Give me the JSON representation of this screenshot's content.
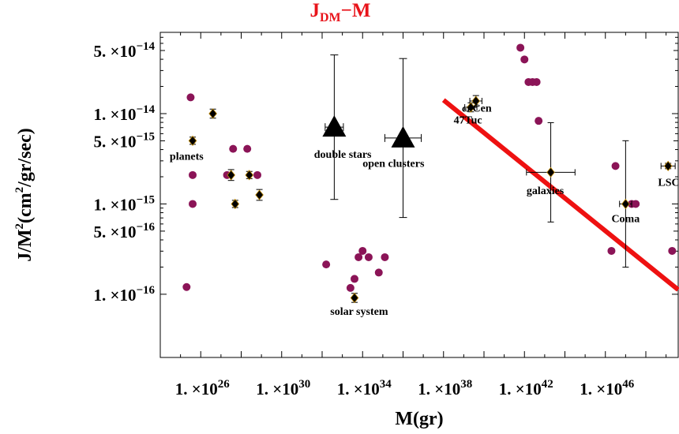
{
  "chart_data": {
    "type": "scatter",
    "title": {
      "main": "J",
      "subscript": "DM",
      "suffix": "−M"
    },
    "title_color": "#e8141b",
    "xlabel": "M(gr)",
    "ylabel": "J/M",
    "ylabel_sup": "2",
    "ylabel_units": "(cm",
    "ylabel_units_sup": "2",
    "ylabel_units_tail": "/gr/sec)",
    "x_scale": "log10",
    "y_scale": "log10",
    "xlim_log10": [
      24,
      49.6
    ],
    "ylim_log10": [
      -16.7,
      -13.1
    ],
    "x_ticks": [
      {
        "mantissa": "1.",
        "times": "×",
        "base": "10",
        "exp": "26",
        "log10": 26
      },
      {
        "mantissa": "1.",
        "times": "×",
        "base": "10",
        "exp": "30",
        "log10": 30
      },
      {
        "mantissa": "1.",
        "times": "×",
        "base": "10",
        "exp": "34",
        "log10": 34
      },
      {
        "mantissa": "1.",
        "times": "×",
        "base": "10",
        "exp": "38",
        "log10": 38
      },
      {
        "mantissa": "1.",
        "times": "×",
        "base": "10",
        "exp": "42",
        "log10": 42
      },
      {
        "mantissa": "1.",
        "times": "×",
        "base": "10",
        "exp": "46",
        "log10": 46
      }
    ],
    "y_ticks": [
      {
        "mantissa": "5.",
        "times": "×",
        "base": "10",
        "exp": "−14",
        "log10": -13.301
      },
      {
        "mantissa": "1.",
        "times": "×",
        "base": "10",
        "exp": "−14",
        "log10": -14
      },
      {
        "mantissa": "5.",
        "times": "×",
        "base": "10",
        "exp": "−15",
        "log10": -14.301
      },
      {
        "mantissa": "1.",
        "times": "×",
        "base": "10",
        "exp": "−15",
        "log10": -15
      },
      {
        "mantissa": "5.",
        "times": "×",
        "base": "10",
        "exp": "−16",
        "log10": -15.301
      },
      {
        "mantissa": "1.",
        "times": "×",
        "base": "10",
        "exp": "−16",
        "log10": -16
      }
    ],
    "purple_color": "#8b1457",
    "fit_line_color": "#ee1111",
    "purple_points_log10": [
      [
        25.3,
        -15.92
      ],
      [
        25.6,
        -15.0
      ],
      [
        25.5,
        -13.82
      ],
      [
        25.6,
        -14.68
      ],
      [
        27.6,
        -14.39
      ],
      [
        28.3,
        -14.39
      ],
      [
        28.8,
        -14.68
      ],
      [
        27.3,
        -14.68
      ],
      [
        32.2,
        -15.67
      ],
      [
        33.4,
        -15.93
      ],
      [
        33.6,
        -15.83
      ],
      [
        33.8,
        -15.59
      ],
      [
        34.0,
        -15.52
      ],
      [
        34.3,
        -15.59
      ],
      [
        34.8,
        -15.76
      ],
      [
        35.1,
        -15.59
      ],
      [
        41.8,
        -13.27
      ],
      [
        42.0,
        -13.4
      ],
      [
        42.2,
        -13.65
      ],
      [
        42.4,
        -13.65
      ],
      [
        42.6,
        -13.65
      ],
      [
        42.7,
        -14.08
      ],
      [
        46.3,
        -15.52
      ],
      [
        46.5,
        -14.58
      ],
      [
        47.3,
        -15.0
      ],
      [
        47.5,
        -15.0
      ],
      [
        49.3,
        -15.52
      ]
    ],
    "diamond_points": [
      {
        "logx": 25.6,
        "logy": -14.3,
        "yerr_log10": 0.04
      },
      {
        "logx": 26.6,
        "logy": -14.0,
        "yerr_log10": 0.05
      },
      {
        "logx": 27.5,
        "logy": -14.68,
        "yerr_log10": 0.06
      },
      {
        "logx": 28.4,
        "logy": -14.68,
        "yerr_log10": 0.04
      },
      {
        "logx": 27.7,
        "logy": -15.0,
        "yerr_log10": 0.04
      },
      {
        "logx": 28.9,
        "logy": -14.9,
        "yerr_log10": 0.06
      },
      {
        "logx": 33.6,
        "logy": -16.04,
        "yerr_log10": 0.05
      },
      {
        "logx": 39.6,
        "logy": -13.86,
        "yerr_log10": 0.06,
        "xerr_log10": 0.3
      },
      {
        "logx": 39.35,
        "logy": -13.93,
        "yerr_log10": 0.05,
        "xerr_log10": 0.3
      },
      {
        "logx": 43.3,
        "logy": -14.65,
        "yerr_log10": 0.55,
        "xerr_log10": 1.2
      },
      {
        "logx": 47.0,
        "logy": -15.0,
        "yerr_log10": 0.7,
        "xerr_log10": 0.3
      },
      {
        "logx": 49.1,
        "logy": -14.58,
        "yerr_log10": 0.03,
        "xerr_log10": 0.35
      }
    ],
    "triangle_points": [
      {
        "logx": 32.6,
        "logy": -14.15,
        "yerr_log10": 0.8,
        "xerr_log10": 0.45
      },
      {
        "logx": 36.0,
        "logy": -14.27,
        "yerr_log10": 0.88,
        "xerr_log10": 0.9
      }
    ],
    "fit_line": {
      "from": [
        38.0,
        -13.85
      ],
      "to": [
        49.6,
        -15.95
      ]
    },
    "annotations": [
      {
        "text": "planets",
        "at": [
          25.3,
          -14.51
        ],
        "anchor": "middle"
      },
      {
        "text": "double stars",
        "at": [
          31.6,
          -14.49
        ],
        "anchor": "start"
      },
      {
        "text": "open clusters",
        "at": [
          34.0,
          -14.59
        ],
        "anchor": "start"
      },
      {
        "text": "solar system",
        "at": [
          32.4,
          -16.23
        ],
        "anchor": "start"
      },
      {
        "text": "ω Cen",
        "at": [
          38.9,
          -13.98
        ],
        "anchor": "start"
      },
      {
        "text": "47Tuc",
        "at": [
          38.5,
          -14.11
        ],
        "anchor": "start"
      },
      {
        "text": "galaxies",
        "at": [
          42.1,
          -14.89
        ],
        "anchor": "start"
      },
      {
        "text": "Coma",
        "at": [
          46.3,
          -15.2
        ],
        "anchor": "start"
      },
      {
        "text": "LSC",
        "at": [
          48.6,
          -14.8
        ],
        "anchor": "start"
      }
    ],
    "grid": false,
    "legend": "none"
  }
}
